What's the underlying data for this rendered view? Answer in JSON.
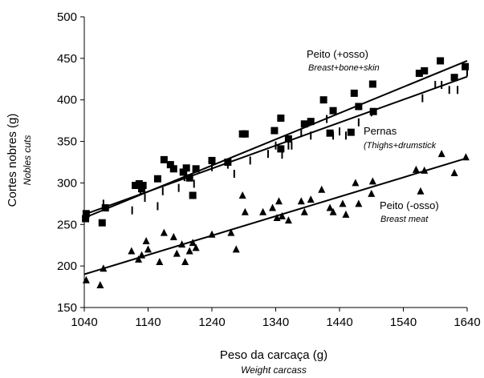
{
  "chart_data": {
    "type": "scatter",
    "xlabel": "Peso da carcaça (g)",
    "xlabel_en": "Weight carcass",
    "ylabel": "Cortes nobres (g)",
    "ylabel_en": "Nobles cuts",
    "xlim": [
      1040,
      1640
    ],
    "ylim": [
      150,
      500
    ],
    "xticks": [
      "1040",
      "1140",
      "1240",
      "1340",
      "1440",
      "1540",
      "1640"
    ],
    "yticks": [
      "150",
      "200",
      "250",
      "300",
      "350",
      "400",
      "450",
      "500"
    ],
    "grid": false,
    "series": [
      {
        "name": "Peito (+osso)",
        "name_en": "Breast+bone+skin",
        "marker": "square",
        "fit": [
          [
            1040,
            258
          ],
          [
            1640,
            447
          ]
        ],
        "points": [
          [
            1042,
            257
          ],
          [
            1043,
            263
          ],
          [
            1068,
            252
          ],
          [
            1073,
            270
          ],
          [
            1120,
            297
          ],
          [
            1126,
            299
          ],
          [
            1130,
            293
          ],
          [
            1132,
            297
          ],
          [
            1155,
            305
          ],
          [
            1165,
            328
          ],
          [
            1175,
            322
          ],
          [
            1180,
            317
          ],
          [
            1195,
            313
          ],
          [
            1200,
            318
          ],
          [
            1205,
            306
          ],
          [
            1210,
            285
          ],
          [
            1215,
            317
          ],
          [
            1240,
            327
          ],
          [
            1265,
            325
          ],
          [
            1288,
            359
          ],
          [
            1292,
            359
          ],
          [
            1338,
            363
          ],
          [
            1348,
            341
          ],
          [
            1348,
            378
          ],
          [
            1360,
            353
          ],
          [
            1385,
            371
          ],
          [
            1395,
            374
          ],
          [
            1415,
            400
          ],
          [
            1425,
            360
          ],
          [
            1430,
            387
          ],
          [
            1458,
            361
          ],
          [
            1463,
            408
          ],
          [
            1470,
            392
          ],
          [
            1492,
            419
          ],
          [
            1493,
            386
          ],
          [
            1565,
            432
          ],
          [
            1573,
            435
          ],
          [
            1598,
            447
          ],
          [
            1620,
            427
          ],
          [
            1637,
            440
          ]
        ]
      },
      {
        "name": "Pernas",
        "name_en": "(Thighs+drumstick",
        "marker": "dash",
        "fit": [
          [
            1040,
            262
          ],
          [
            1640,
            428
          ]
        ],
        "points": [
          [
            1070,
            275
          ],
          [
            1115,
            267
          ],
          [
            1128,
            290
          ],
          [
            1135,
            282
          ],
          [
            1155,
            272
          ],
          [
            1163,
            290
          ],
          [
            1188,
            294
          ],
          [
            1197,
            307
          ],
          [
            1200,
            313
          ],
          [
            1212,
            299
          ],
          [
            1240,
            319
          ],
          [
            1265,
            322
          ],
          [
            1275,
            311
          ],
          [
            1300,
            327
          ],
          [
            1328,
            335
          ],
          [
            1340,
            345
          ],
          [
            1350,
            334
          ],
          [
            1360,
            345
          ],
          [
            1365,
            345
          ],
          [
            1380,
            360
          ],
          [
            1395,
            357
          ],
          [
            1420,
            377
          ],
          [
            1430,
            357
          ],
          [
            1440,
            362
          ],
          [
            1450,
            357
          ],
          [
            1470,
            373
          ],
          [
            1490,
            385
          ],
          [
            1570,
            402
          ],
          [
            1590,
            418
          ],
          [
            1600,
            418
          ],
          [
            1612,
            412
          ],
          [
            1625,
            412
          ],
          [
            1640,
            433
          ]
        ]
      },
      {
        "name": "Peito (-osso)",
        "name_en": "Breast meat",
        "marker": "triangle",
        "fit": [
          [
            1040,
            190
          ],
          [
            1640,
            330
          ]
        ],
        "points": [
          [
            1043,
            183
          ],
          [
            1065,
            177
          ],
          [
            1070,
            197
          ],
          [
            1114,
            218
          ],
          [
            1125,
            208
          ],
          [
            1130,
            213
          ],
          [
            1137,
            230
          ],
          [
            1140,
            220
          ],
          [
            1158,
            205
          ],
          [
            1165,
            240
          ],
          [
            1180,
            235
          ],
          [
            1185,
            215
          ],
          [
            1193,
            226
          ],
          [
            1198,
            205
          ],
          [
            1205,
            218
          ],
          [
            1210,
            228
          ],
          [
            1215,
            222
          ],
          [
            1240,
            238
          ],
          [
            1270,
            240
          ],
          [
            1278,
            220
          ],
          [
            1288,
            285
          ],
          [
            1292,
            265
          ],
          [
            1320,
            265
          ],
          [
            1335,
            270
          ],
          [
            1342,
            258
          ],
          [
            1345,
            278
          ],
          [
            1350,
            260
          ],
          [
            1360,
            255
          ],
          [
            1380,
            278
          ],
          [
            1385,
            265
          ],
          [
            1395,
            280
          ],
          [
            1412,
            292
          ],
          [
            1425,
            270
          ],
          [
            1430,
            265
          ],
          [
            1445,
            275
          ],
          [
            1450,
            262
          ],
          [
            1465,
            300
          ],
          [
            1470,
            275
          ],
          [
            1490,
            287
          ],
          [
            1492,
            302
          ],
          [
            1560,
            316
          ],
          [
            1567,
            290
          ],
          [
            1573,
            315
          ],
          [
            1600,
            335
          ],
          [
            1620,
            312
          ],
          [
            1638,
            331
          ]
        ]
      }
    ]
  }
}
